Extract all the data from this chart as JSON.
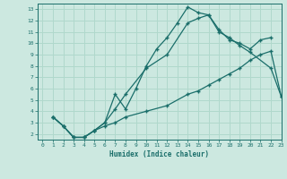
{
  "xlabel": "Humidex (Indice chaleur)",
  "bg_color": "#cce8e0",
  "grid_color": "#b0d8cc",
  "line_color": "#1a6e6a",
  "xlim": [
    -0.5,
    23
  ],
  "ylim": [
    1.5,
    13.5
  ],
  "yticks": [
    2,
    3,
    4,
    5,
    6,
    7,
    8,
    9,
    10,
    11,
    12,
    13
  ],
  "xticks": [
    0,
    1,
    2,
    3,
    4,
    5,
    6,
    7,
    8,
    9,
    10,
    11,
    12,
    13,
    14,
    15,
    16,
    17,
    18,
    19,
    20,
    21,
    22,
    23
  ],
  "curve1_x": [
    1,
    2,
    3,
    4,
    5,
    6,
    7,
    8,
    9,
    10,
    11,
    12,
    13,
    14,
    15,
    16,
    17,
    18,
    19,
    20,
    21,
    22
  ],
  "curve1_y": [
    3.5,
    2.7,
    1.7,
    1.7,
    2.3,
    3.0,
    5.5,
    4.2,
    6.0,
    8.0,
    9.5,
    10.5,
    11.8,
    13.2,
    12.7,
    12.5,
    11.2,
    10.3,
    10.0,
    9.5,
    10.3,
    10.5
  ],
  "curve2_x": [
    1,
    2,
    3,
    4,
    5,
    6,
    7,
    8,
    10,
    12,
    14,
    15,
    16,
    17,
    18,
    19,
    20,
    22,
    23
  ],
  "curve2_y": [
    3.5,
    2.7,
    1.7,
    1.7,
    2.3,
    3.0,
    4.2,
    5.5,
    7.8,
    9.0,
    11.8,
    12.2,
    12.5,
    11.0,
    10.5,
    9.8,
    9.2,
    7.8,
    5.3
  ],
  "curve3_x": [
    1,
    2,
    3,
    4,
    5,
    6,
    7,
    8,
    10,
    12,
    14,
    15,
    16,
    17,
    18,
    19,
    20,
    21,
    22,
    23
  ],
  "curve3_y": [
    3.5,
    2.7,
    1.7,
    1.7,
    2.3,
    2.7,
    3.0,
    3.5,
    4.0,
    4.5,
    5.5,
    5.8,
    6.3,
    6.8,
    7.3,
    7.8,
    8.5,
    9.0,
    9.3,
    5.3
  ]
}
